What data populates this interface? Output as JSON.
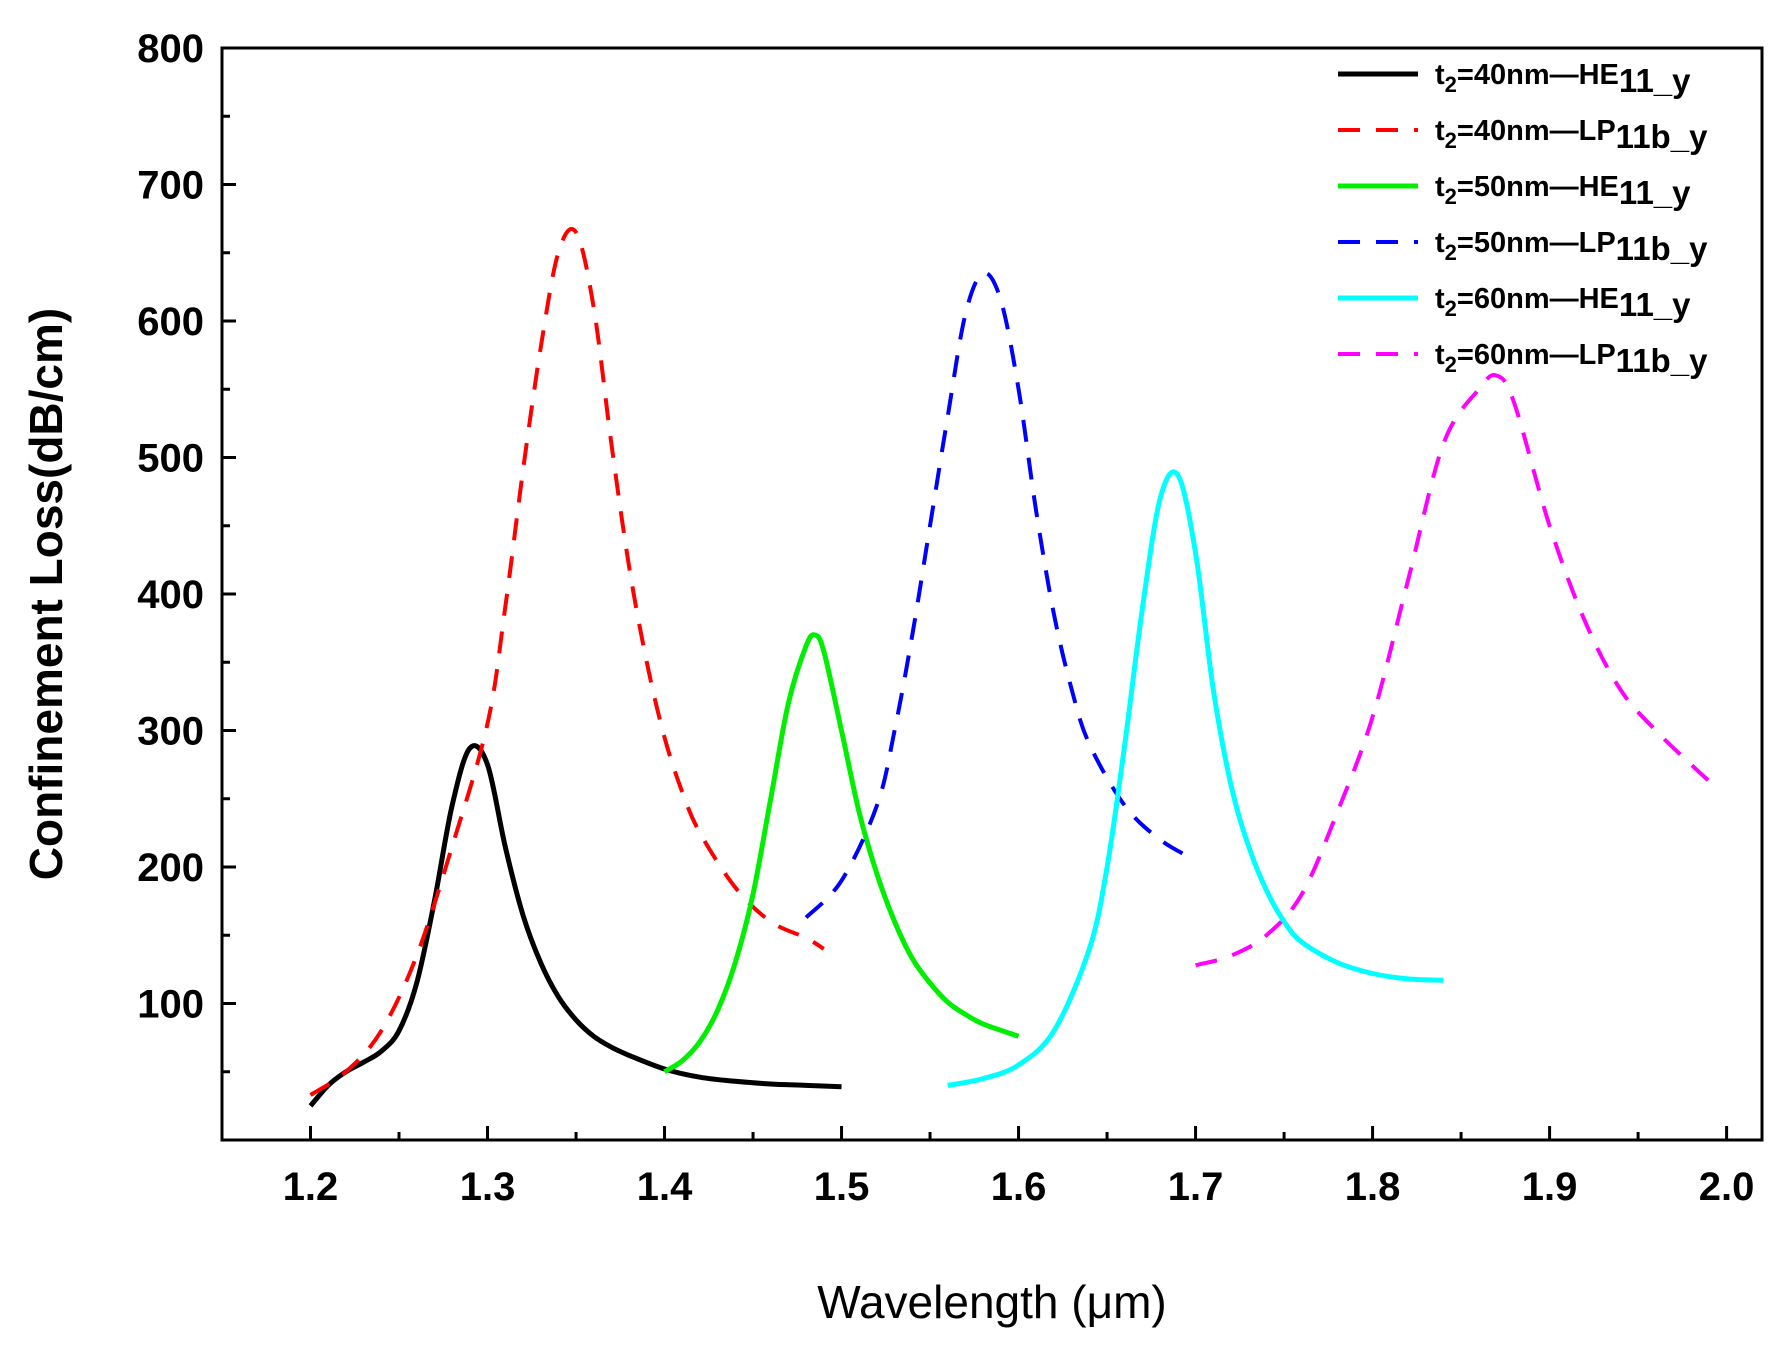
{
  "chart_data": {
    "type": "line",
    "xlabel": "Wavelength (μm)",
    "ylabel": "Confinement Loss(dB/cm)",
    "xlim": [
      1.15,
      2.02
    ],
    "ylim": [
      0,
      800
    ],
    "x_ticks": [
      1.2,
      1.3,
      1.4,
      1.5,
      1.6,
      1.7,
      1.8,
      1.9,
      2.0
    ],
    "x_tick_labels": [
      "1.2",
      "1.3",
      "1.4",
      "1.5",
      "1.6",
      "1.7",
      "1.8",
      "1.9",
      "2.0"
    ],
    "y_ticks": [
      100,
      200,
      300,
      400,
      500,
      600,
      700,
      800
    ],
    "y_tick_labels": [
      "100",
      "200",
      "300",
      "400",
      "500",
      "600",
      "700",
      "800"
    ],
    "grid": false,
    "legend_position": "top-right",
    "series": [
      {
        "name": "t2=40nm—HE11_y",
        "legend": {
          "pre": "t",
          "sub1": "2",
          "mid": "=40nm—HE",
          "sub2": "11_y"
        },
        "color": "#000000",
        "dash": "solid",
        "x": [
          1.2,
          1.21,
          1.22,
          1.23,
          1.24,
          1.25,
          1.26,
          1.27,
          1.28,
          1.29,
          1.3,
          1.31,
          1.32,
          1.33,
          1.34,
          1.35,
          1.36,
          1.37,
          1.38,
          1.4,
          1.42,
          1.44,
          1.46,
          1.48,
          1.5
        ],
        "y": [
          25,
          40,
          50,
          57,
          65,
          80,
          115,
          175,
          245,
          287,
          275,
          215,
          165,
          130,
          105,
          88,
          76,
          68,
          62,
          52,
          46,
          43,
          41,
          40,
          39
        ]
      },
      {
        "name": "t2=40nm—LP11b_y",
        "legend": {
          "pre": "t",
          "sub1": "2",
          "mid": "=40nm—LP",
          "sub2": "11b_y"
        },
        "color": "#ff0000",
        "dash": "dashed",
        "x": [
          1.2,
          1.22,
          1.24,
          1.26,
          1.28,
          1.3,
          1.31,
          1.32,
          1.33,
          1.34,
          1.35,
          1.36,
          1.37,
          1.38,
          1.39,
          1.4,
          1.41,
          1.42,
          1.44,
          1.46,
          1.48,
          1.49
        ],
        "y": [
          33,
          50,
          80,
          135,
          215,
          305,
          390,
          490,
          580,
          650,
          665,
          610,
          510,
          420,
          350,
          295,
          255,
          225,
          185,
          160,
          148,
          140
        ]
      },
      {
        "name": "t2=50nm—HE11_y",
        "legend": {
          "pre": "t",
          "sub1": "2",
          "mid": "=50nm—HE",
          "sub2": "11_y"
        },
        "color": "#00ee00",
        "dash": "solid",
        "x": [
          1.4,
          1.41,
          1.42,
          1.43,
          1.44,
          1.45,
          1.46,
          1.47,
          1.48,
          1.485,
          1.49,
          1.5,
          1.51,
          1.52,
          1.53,
          1.54,
          1.55,
          1.56,
          1.57,
          1.58,
          1.6
        ],
        "y": [
          50,
          58,
          72,
          95,
          130,
          180,
          250,
          320,
          362,
          370,
          358,
          300,
          240,
          195,
          160,
          133,
          115,
          101,
          92,
          85,
          76
        ]
      },
      {
        "name": "t2=50nm—LP11b_y",
        "legend": {
          "pre": "t",
          "sub1": "2",
          "mid": "=50nm—LP",
          "sub2": "11b_y"
        },
        "color": "#0000ff",
        "dash": "dashed",
        "x": [
          1.48,
          1.5,
          1.52,
          1.53,
          1.54,
          1.55,
          1.56,
          1.57,
          1.58,
          1.59,
          1.6,
          1.61,
          1.62,
          1.63,
          1.64,
          1.66,
          1.68,
          1.7
        ],
        "y": [
          163,
          190,
          245,
          300,
          370,
          450,
          530,
          605,
          635,
          615,
          550,
          460,
          385,
          330,
          290,
          245,
          220,
          205
        ]
      },
      {
        "name": "t2=60nm—HE11_y",
        "legend": {
          "pre": "t",
          "sub1": "2",
          "mid": "=60nm—HE",
          "sub2": "11_y"
        },
        "color": "#00ffff",
        "dash": "solid",
        "x": [
          1.56,
          1.58,
          1.6,
          1.62,
          1.64,
          1.65,
          1.66,
          1.67,
          1.68,
          1.69,
          1.7,
          1.71,
          1.72,
          1.73,
          1.74,
          1.75,
          1.76,
          1.78,
          1.8,
          1.82,
          1.84
        ],
        "y": [
          40,
          45,
          55,
          80,
          140,
          200,
          290,
          390,
          470,
          487,
          430,
          330,
          260,
          215,
          183,
          160,
          145,
          130,
          122,
          118,
          117
        ]
      },
      {
        "name": "t2=60nm—LP11b_y",
        "legend": {
          "pre": "t",
          "sub1": "2",
          "mid": "=60nm—LP",
          "sub2": "11b_y"
        },
        "color": "#ff00ff",
        "dash": "dashed",
        "x": [
          1.7,
          1.72,
          1.74,
          1.76,
          1.78,
          1.8,
          1.82,
          1.84,
          1.86,
          1.87,
          1.88,
          1.9,
          1.92,
          1.94,
          1.96,
          1.98,
          1.99
        ],
        "y": [
          128,
          135,
          150,
          180,
          240,
          310,
          410,
          510,
          550,
          560,
          540,
          450,
          380,
          330,
          300,
          275,
          263
        ]
      }
    ]
  }
}
